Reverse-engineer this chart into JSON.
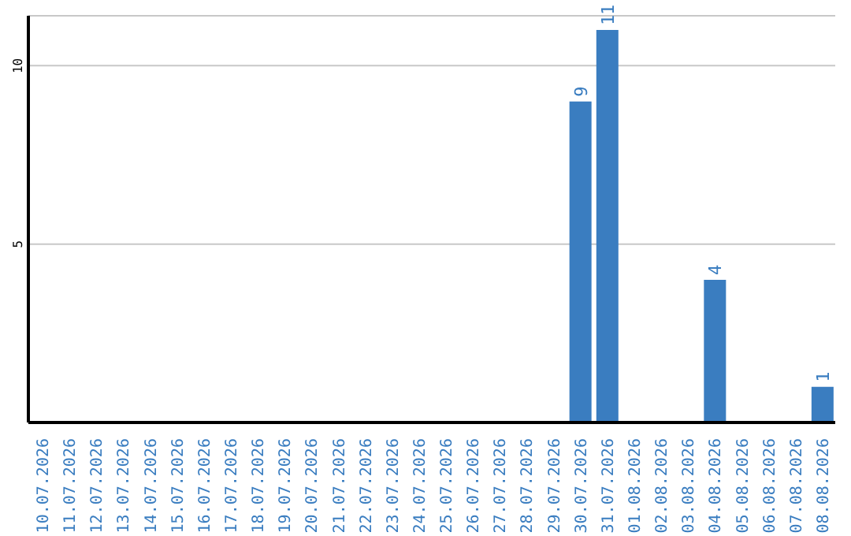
{
  "chart_data": {
    "type": "bar",
    "categories": [
      "10.07.2026",
      "11.07.2026",
      "12.07.2026",
      "13.07.2026",
      "14.07.2026",
      "15.07.2026",
      "16.07.2026",
      "17.07.2026",
      "18.07.2026",
      "19.07.2026",
      "20.07.2026",
      "21.07.2026",
      "22.07.2026",
      "23.07.2026",
      "24.07.2026",
      "25.07.2026",
      "26.07.2026",
      "27.07.2026",
      "28.07.2026",
      "29.07.2026",
      "30.07.2026",
      "31.07.2026",
      "01.08.2026",
      "02.08.2026",
      "03.08.2026",
      "04.08.2026",
      "05.08.2026",
      "06.08.2026",
      "07.08.2026",
      "08.08.2026"
    ],
    "values": [
      0,
      0,
      0,
      0,
      0,
      0,
      0,
      0,
      0,
      0,
      0,
      0,
      0,
      0,
      0,
      0,
      0,
      0,
      0,
      0,
      9,
      11,
      0,
      0,
      0,
      4,
      0,
      0,
      0,
      1
    ],
    "value_labels": [
      null,
      null,
      null,
      null,
      null,
      null,
      null,
      null,
      null,
      null,
      null,
      null,
      null,
      null,
      null,
      null,
      null,
      null,
      null,
      null,
      "9",
      "11",
      null,
      null,
      null,
      "4",
      null,
      null,
      null,
      "1"
    ],
    "color": "#3a7dc0",
    "ylim": [
      0,
      11.4
    ],
    "yticks": [
      5,
      10
    ],
    "grid": "y"
  }
}
